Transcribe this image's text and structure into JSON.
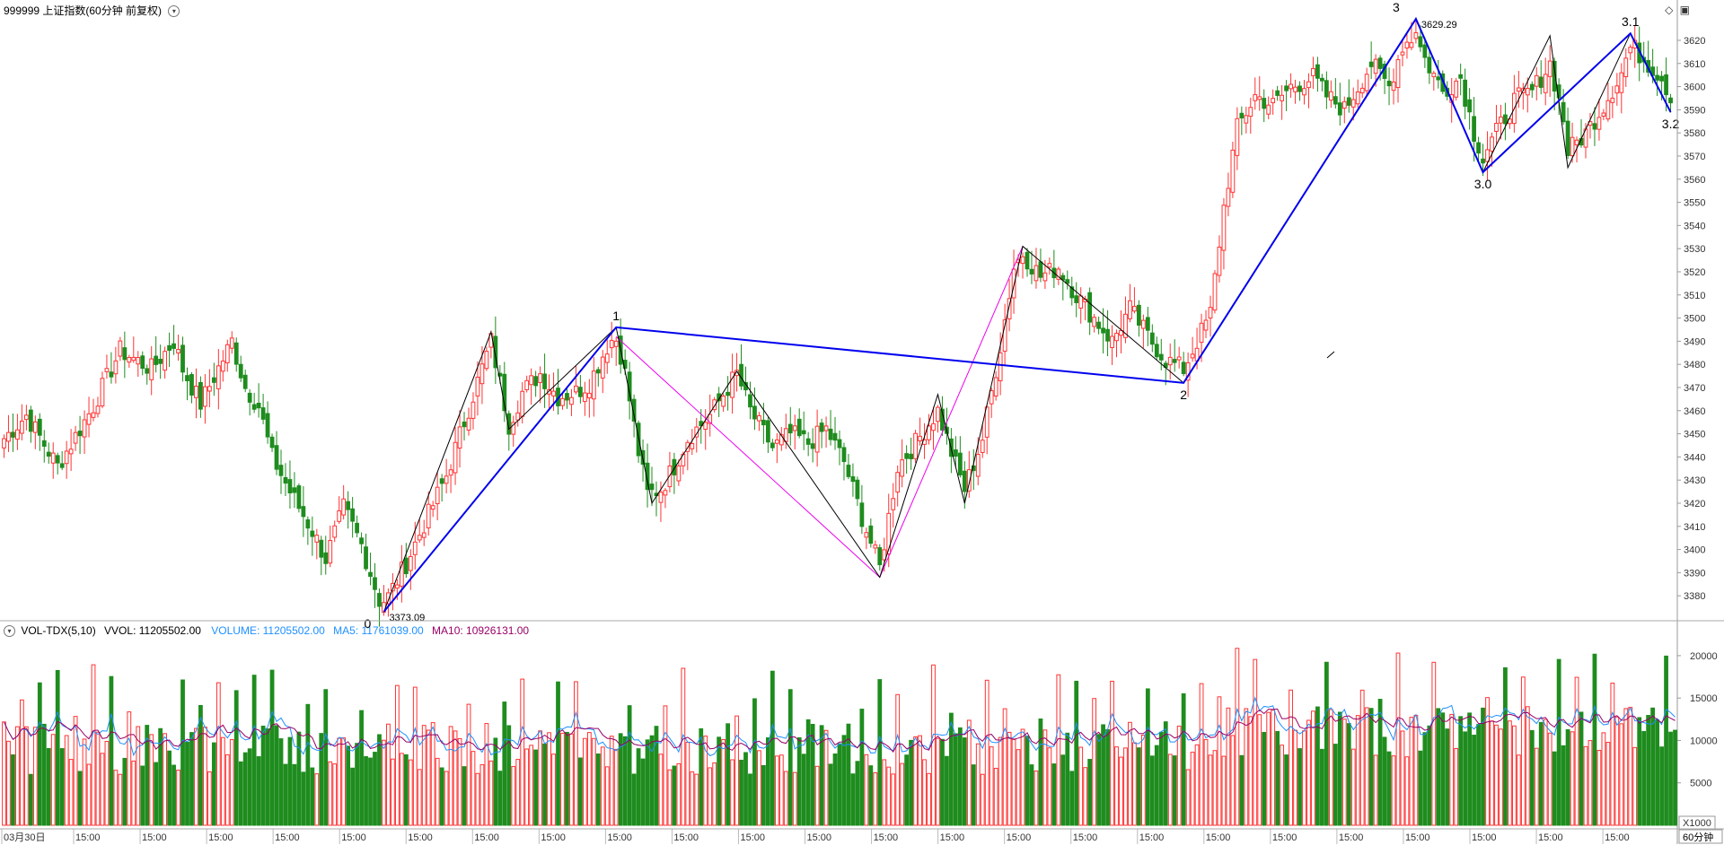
{
  "header": {
    "main_title": "999999 上证指数(60分钟 前复权)",
    "vol_title": "VOL-TDX(5,10)",
    "vvol_label": "VVOL: 11205502.00",
    "volume_label": "VOLUME: 11205502.00",
    "ma5_label": "MA5: 11761039.00",
    "ma10_label": "MA10: 10926131.00",
    "period_label": "60分钟",
    "unit_label": "X1000",
    "settings_icon": "chevron-down-icon"
  },
  "colors": {
    "up": "#ff3333",
    "down": "#1e8c1e",
    "zigzag_major": "#0000ee",
    "zigzag_minor": "#000000",
    "zigzag_alt": "#ee00ee",
    "ma5": "#1e90ff",
    "ma10": "#990066",
    "grid": "#dddddd"
  },
  "chart_data": [
    {
      "type": "candlestick",
      "ylim": [
        3370,
        3632
      ],
      "y_ticks": [
        3380,
        3390,
        3400,
        3410,
        3420,
        3430,
        3440,
        3450,
        3460,
        3470,
        3480,
        3490,
        3500,
        3510,
        3520,
        3530,
        3540,
        3550,
        3560,
        3570,
        3580,
        3590,
        3600,
        3610,
        3620
      ],
      "x_labels": [
        "03月30日",
        "15:00",
        "15:00",
        "15:00",
        "15:00",
        "15:00",
        "15:00",
        "15:00",
        "15:00",
        "15:00",
        "15:00",
        "15:00",
        "15:00",
        "15:00",
        "15:00",
        "15:00",
        "15:00",
        "15:00",
        "15:00",
        "15:00",
        "15:00",
        "15:00",
        "15:00",
        "15:00",
        "15:00"
      ],
      "key_points": [
        {
          "bar": 85,
          "price": 3373.09,
          "label": "0",
          "value_label": "3373.09"
        },
        {
          "bar": 137,
          "price": 3496,
          "label": "1"
        },
        {
          "bar": 264,
          "price": 3472,
          "label": "2"
        },
        {
          "bar": 316,
          "price": 3629.29,
          "label": "3",
          "value_label": "3629.29"
        },
        {
          "bar": 331,
          "price": 3563,
          "label": "3.0"
        },
        {
          "bar": 364,
          "price": 3623,
          "label": "3.1"
        },
        {
          "bar": 373,
          "price": 3589,
          "label": "3.2"
        }
      ],
      "minor_swings": [
        [
          85,
          3373
        ],
        [
          109,
          3494
        ],
        [
          113,
          3452
        ],
        [
          137,
          3496
        ],
        [
          145,
          3420
        ],
        [
          164,
          3477
        ],
        [
          196,
          3388
        ],
        [
          209,
          3467
        ],
        [
          215,
          3420
        ],
        [
          228,
          3531
        ],
        [
          264,
          3472
        ],
        [
          316,
          3629
        ],
        [
          331,
          3563
        ],
        [
          346,
          3622
        ],
        [
          350,
          3565
        ],
        [
          364,
          3623
        ],
        [
          373,
          3589
        ]
      ],
      "alt_swings": [
        [
          137,
          3492
        ],
        [
          196,
          3388
        ],
        [
          228,
          3531
        ]
      ],
      "anchors": [
        [
          0,
          3448
        ],
        [
          5,
          3458
        ],
        [
          12,
          3436
        ],
        [
          20,
          3462
        ],
        [
          26,
          3486
        ],
        [
          33,
          3478
        ],
        [
          38,
          3490
        ],
        [
          40,
          3478
        ],
        [
          44,
          3463
        ],
        [
          51,
          3490
        ],
        [
          54,
          3470
        ],
        [
          57,
          3462
        ],
        [
          60,
          3440
        ],
        [
          64,
          3425
        ],
        [
          69,
          3408
        ],
        [
          72,
          3396
        ],
        [
          76,
          3418
        ],
        [
          80,
          3402
        ],
        [
          84,
          3378
        ],
        [
          85,
          3376
        ],
        [
          90,
          3394
        ],
        [
          99,
          3432
        ],
        [
          109,
          3490
        ],
        [
          113,
          3454
        ],
        [
          116,
          3468
        ],
        [
          120,
          3476
        ],
        [
          124,
          3466
        ],
        [
          128,
          3468
        ],
        [
          131,
          3472
        ],
        [
          135,
          3488
        ],
        [
          137,
          3493
        ],
        [
          139,
          3476
        ],
        [
          142,
          3442
        ],
        [
          144,
          3424
        ],
        [
          147,
          3426
        ],
        [
          150,
          3436
        ],
        [
          153,
          3448
        ],
        [
          158,
          3458
        ],
        [
          162,
          3470
        ],
        [
          164,
          3476
        ],
        [
          167,
          3460
        ],
        [
          172,
          3444
        ],
        [
          176,
          3450
        ],
        [
          180,
          3446
        ],
        [
          184,
          3452
        ],
        [
          188,
          3438
        ],
        [
          192,
          3414
        ],
        [
          196,
          3392
        ],
        [
          200,
          3436
        ],
        [
          204,
          3446
        ],
        [
          209,
          3460
        ],
        [
          212,
          3442
        ],
        [
          215,
          3426
        ],
        [
          219,
          3448
        ],
        [
          223,
          3488
        ],
        [
          226,
          3522
        ],
        [
          228,
          3528
        ],
        [
          232,
          3518
        ],
        [
          236,
          3522
        ],
        [
          240,
          3510
        ],
        [
          244,
          3500
        ],
        [
          248,
          3490
        ],
        [
          252,
          3504
        ],
        [
          256,
          3492
        ],
        [
          260,
          3482
        ],
        [
          264,
          3478
        ],
        [
          266,
          3486
        ],
        [
          270,
          3502
        ],
        [
          273,
          3548
        ],
        [
          276,
          3582
        ],
        [
          280,
          3596
        ],
        [
          284,
          3592
        ],
        [
          288,
          3600
        ],
        [
          293,
          3604
        ],
        [
          296,
          3596
        ],
        [
          300,
          3590
        ],
        [
          306,
          3610
        ],
        [
          310,
          3600
        ],
        [
          313,
          3618
        ],
        [
          316,
          3622
        ],
        [
          318,
          3612
        ],
        [
          322,
          3598
        ],
        [
          326,
          3604
        ],
        [
          329,
          3580
        ],
        [
          331,
          3570
        ],
        [
          334,
          3580
        ],
        [
          338,
          3594
        ],
        [
          342,
          3598
        ],
        [
          346,
          3610
        ],
        [
          349,
          3586
        ],
        [
          350,
          3572
        ],
        [
          354,
          3580
        ],
        [
          358,
          3592
        ],
        [
          362,
          3606
        ],
        [
          364,
          3618
        ],
        [
          367,
          3612
        ],
        [
          371,
          3604
        ],
        [
          373,
          3596
        ]
      ]
    },
    {
      "type": "bar",
      "series": [
        {
          "name": "VOLUME",
          "value": 11205502
        },
        {
          "name": "MA5",
          "value": 11761039
        },
        {
          "name": "MA10",
          "value": 10926131
        }
      ],
      "ylim": [
        0,
        22000
      ],
      "y_ticks": [
        5000,
        10000,
        15000,
        20000
      ],
      "unit": "X1000"
    }
  ]
}
